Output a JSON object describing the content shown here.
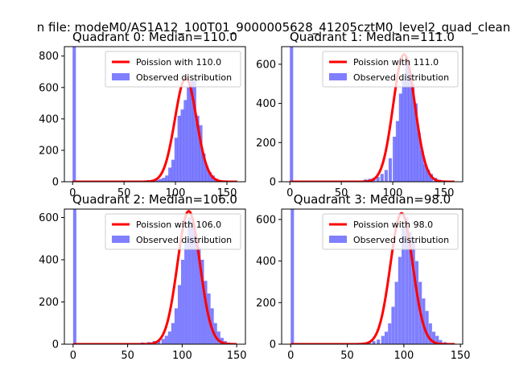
{
  "figure": {
    "suptitle": "n file: modeM0/AS1A12_100T01_9000005628_41205cztM0_level2_quad_clean"
  },
  "chart_data": [
    {
      "type": "bar",
      "title": "Quadrant 0: Median=110.0",
      "xlim": [
        -8,
        168
      ],
      "ylim": [
        0,
        860
      ],
      "xticks": [
        0,
        50,
        100,
        150
      ],
      "yticks": [
        0,
        200,
        400,
        600,
        800
      ],
      "legend_position": "top-right",
      "legend": [
        "Poission with 110.0",
        "Observed distribution"
      ],
      "bar_width": 3.2,
      "observed": [
        [
          0,
          860
        ],
        [
          63,
          3
        ],
        [
          72,
          10
        ],
        [
          77,
          10
        ],
        [
          81,
          12
        ],
        [
          84,
          18
        ],
        [
          87,
          25
        ],
        [
          90,
          40
        ],
        [
          93,
          90
        ],
        [
          96,
          140
        ],
        [
          99,
          280
        ],
        [
          102,
          420
        ],
        [
          105,
          460
        ],
        [
          108,
          520
        ],
        [
          111,
          600
        ],
        [
          114,
          640
        ],
        [
          117,
          660
        ],
        [
          120,
          420
        ],
        [
          123,
          360
        ],
        [
          126,
          180
        ],
        [
          129,
          100
        ],
        [
          132,
          60
        ],
        [
          135,
          40
        ],
        [
          138,
          20
        ],
        [
          141,
          12
        ],
        [
          144,
          6
        ],
        [
          147,
          3
        ]
      ],
      "poisson_mean": 110.0,
      "poisson_peak": 660,
      "poisson_range": [
        0,
        160
      ]
    },
    {
      "type": "bar",
      "title": "Quadrant 1: Median=111.0",
      "xlim": [
        -8,
        168
      ],
      "ylim": [
        0,
        690
      ],
      "xticks": [
        0,
        50,
        100,
        150
      ],
      "yticks": [
        0,
        200,
        400,
        600
      ],
      "legend_position": "top-right",
      "legend": [
        "Poission with 111.0",
        "Observed distribution"
      ],
      "bar_width": 3.2,
      "observed": [
        [
          0,
          690
        ],
        [
          55,
          3
        ],
        [
          68,
          5
        ],
        [
          72,
          12
        ],
        [
          76,
          15
        ],
        [
          80,
          20
        ],
        [
          84,
          25
        ],
        [
          88,
          40
        ],
        [
          92,
          60
        ],
        [
          96,
          120
        ],
        [
          100,
          230
        ],
        [
          103,
          310
        ],
        [
          106,
          450
        ],
        [
          109,
          520
        ],
        [
          112,
          640
        ],
        [
          115,
          560
        ],
        [
          118,
          500
        ],
        [
          121,
          400
        ],
        [
          124,
          250
        ],
        [
          127,
          160
        ],
        [
          130,
          90
        ],
        [
          133,
          60
        ],
        [
          136,
          40
        ],
        [
          140,
          20
        ],
        [
          144,
          10
        ],
        [
          148,
          5
        ]
      ],
      "poisson_mean": 111.0,
      "poisson_peak": 650,
      "poisson_range": [
        0,
        160
      ]
    },
    {
      "type": "bar",
      "title": "Quadrant 2: Median=106.0",
      "xlim": [
        -8,
        158
      ],
      "ylim": [
        0,
        640
      ],
      "xticks": [
        0,
        50,
        100,
        150
      ],
      "yticks": [
        0,
        200,
        400,
        600
      ],
      "legend_position": "top-right",
      "legend": [
        "Poission with 106.0",
        "Observed distribution"
      ],
      "bar_width": 3.0,
      "observed": [
        [
          0,
          640
        ],
        [
          62,
          8
        ],
        [
          68,
          10
        ],
        [
          73,
          15
        ],
        [
          77,
          18
        ],
        [
          81,
          25
        ],
        [
          84,
          40
        ],
        [
          87,
          60
        ],
        [
          90,
          100
        ],
        [
          93,
          170
        ],
        [
          96,
          280
        ],
        [
          99,
          400
        ],
        [
          102,
          480
        ],
        [
          105,
          600
        ],
        [
          108,
          560
        ],
        [
          111,
          520
        ],
        [
          114,
          460
        ],
        [
          117,
          400
        ],
        [
          120,
          300
        ],
        [
          123,
          240
        ],
        [
          126,
          170
        ],
        [
          129,
          100
        ],
        [
          132,
          60
        ],
        [
          135,
          30
        ],
        [
          138,
          15
        ],
        [
          141,
          8
        ],
        [
          145,
          4
        ]
      ],
      "poisson_mean": 106.0,
      "poisson_peak": 630,
      "poisson_range": [
        0,
        150
      ]
    },
    {
      "type": "bar",
      "title": "Quadrant 3: Median=98.0",
      "xlim": [
        -8,
        152
      ],
      "ylim": [
        0,
        650
      ],
      "xticks": [
        0,
        50,
        100,
        150
      ],
      "yticks": [
        0,
        200,
        400,
        600
      ],
      "legend_position": "top-right",
      "legend": [
        "Poission with 98.0",
        "Observed distribution"
      ],
      "bar_width": 2.9,
      "observed": [
        [
          0,
          650
        ],
        [
          58,
          5
        ],
        [
          64,
          8
        ],
        [
          68,
          10
        ],
        [
          72,
          15
        ],
        [
          76,
          22
        ],
        [
          80,
          40
        ],
        [
          83,
          60
        ],
        [
          86,
          100
        ],
        [
          89,
          180
        ],
        [
          92,
          300
        ],
        [
          95,
          420
        ],
        [
          98,
          560
        ],
        [
          101,
          610
        ],
        [
          104,
          540
        ],
        [
          107,
          500
        ],
        [
          110,
          400
        ],
        [
          113,
          300
        ],
        [
          116,
          220
        ],
        [
          119,
          160
        ],
        [
          122,
          100
        ],
        [
          125,
          60
        ],
        [
          128,
          40
        ],
        [
          131,
          20
        ],
        [
          135,
          10
        ],
        [
          140,
          4
        ]
      ],
      "poisson_mean": 98.0,
      "poisson_peak": 630,
      "poisson_range": [
        0,
        145
      ]
    }
  ]
}
